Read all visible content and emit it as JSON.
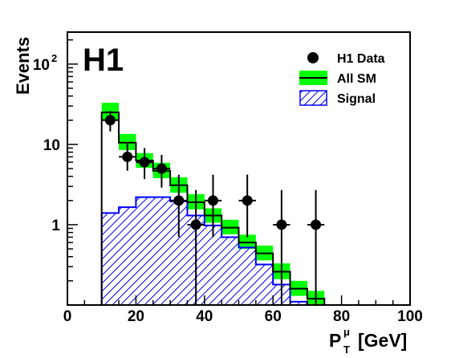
{
  "chart_data": {
    "type": "histogram",
    "experiment_label": "H1",
    "xlabel": {
      "base": "P",
      "sub": "T",
      "sup": "μ",
      "unit": "[GeV]"
    },
    "ylabel": "Events",
    "xlim": [
      0,
      100
    ],
    "ylim": [
      0.1,
      250
    ],
    "yscale": "log",
    "x_ticks": [
      "0",
      "20",
      "40",
      "60",
      "80",
      "100"
    ],
    "y_ticks": [
      {
        "value": 1,
        "label": "1"
      },
      {
        "value": 10,
        "label": "10"
      },
      {
        "value": 100,
        "label": "10",
        "exp": "2"
      }
    ],
    "legend": {
      "position": "top-right",
      "entries": [
        {
          "key": "data",
          "label": "H1 Data"
        },
        {
          "key": "sm",
          "label": "All SM"
        },
        {
          "key": "signal",
          "label": "Signal"
        }
      ]
    },
    "bin_edges": [
      10,
      15,
      20,
      25,
      30,
      35,
      40,
      45,
      50,
      55,
      60,
      65,
      70,
      75
    ],
    "series": [
      {
        "key": "sm",
        "label": "All SM",
        "values": [
          25,
          10.5,
          6.3,
          4.7,
          3.1,
          1.9,
          1.3,
          0.92,
          0.6,
          0.44,
          0.26,
          0.16,
          0.12
        ],
        "band_low": [
          20,
          8.5,
          5.1,
          3.8,
          2.5,
          1.55,
          1.06,
          0.76,
          0.5,
          0.36,
          0.21,
          0.13,
          0.1
        ],
        "band_high": [
          33,
          13.5,
          7.8,
          5.9,
          3.9,
          2.4,
          1.6,
          1.15,
          0.75,
          0.55,
          0.33,
          0.2,
          0.15
        ],
        "color": "#000000",
        "band_color": "#00ff00"
      },
      {
        "key": "signal",
        "label": "Signal",
        "values": [
          1.4,
          1.65,
          2.2,
          2.2,
          1.95,
          1.3,
          0.98,
          0.7,
          0.52,
          0.32,
          0.18,
          0.11,
          0.1
        ],
        "color": "#0000ff"
      }
    ],
    "data_points": {
      "label": "H1 Data",
      "points": [
        {
          "x": 12.5,
          "y": 20,
          "y_low": 14.5,
          "y_high": 26
        },
        {
          "x": 17.5,
          "y": 7,
          "y_low": 4.7,
          "y_high": 10.5
        },
        {
          "x": 22.5,
          "y": 6,
          "y_low": 3.7,
          "y_high": 9
        },
        {
          "x": 27.5,
          "y": 5,
          "y_low": 2.9,
          "y_high": 7.4
        },
        {
          "x": 32.5,
          "y": 2,
          "y_low": 0.7,
          "y_high": 4.2
        },
        {
          "x": 37.5,
          "y": 1,
          "y_low": 0.1,
          "y_high": 2.7
        },
        {
          "x": 42.5,
          "y": 2,
          "y_low": 0.7,
          "y_high": 4.2
        },
        {
          "x": 52.5,
          "y": 2,
          "y_low": 0.7,
          "y_high": 4.2
        },
        {
          "x": 62.5,
          "y": 1,
          "y_low": 0.1,
          "y_high": 2.7
        },
        {
          "x": 72.5,
          "y": 1,
          "y_low": 0.1,
          "y_high": 2.7
        }
      ],
      "x_error": 2.5,
      "color": "#000000"
    }
  }
}
